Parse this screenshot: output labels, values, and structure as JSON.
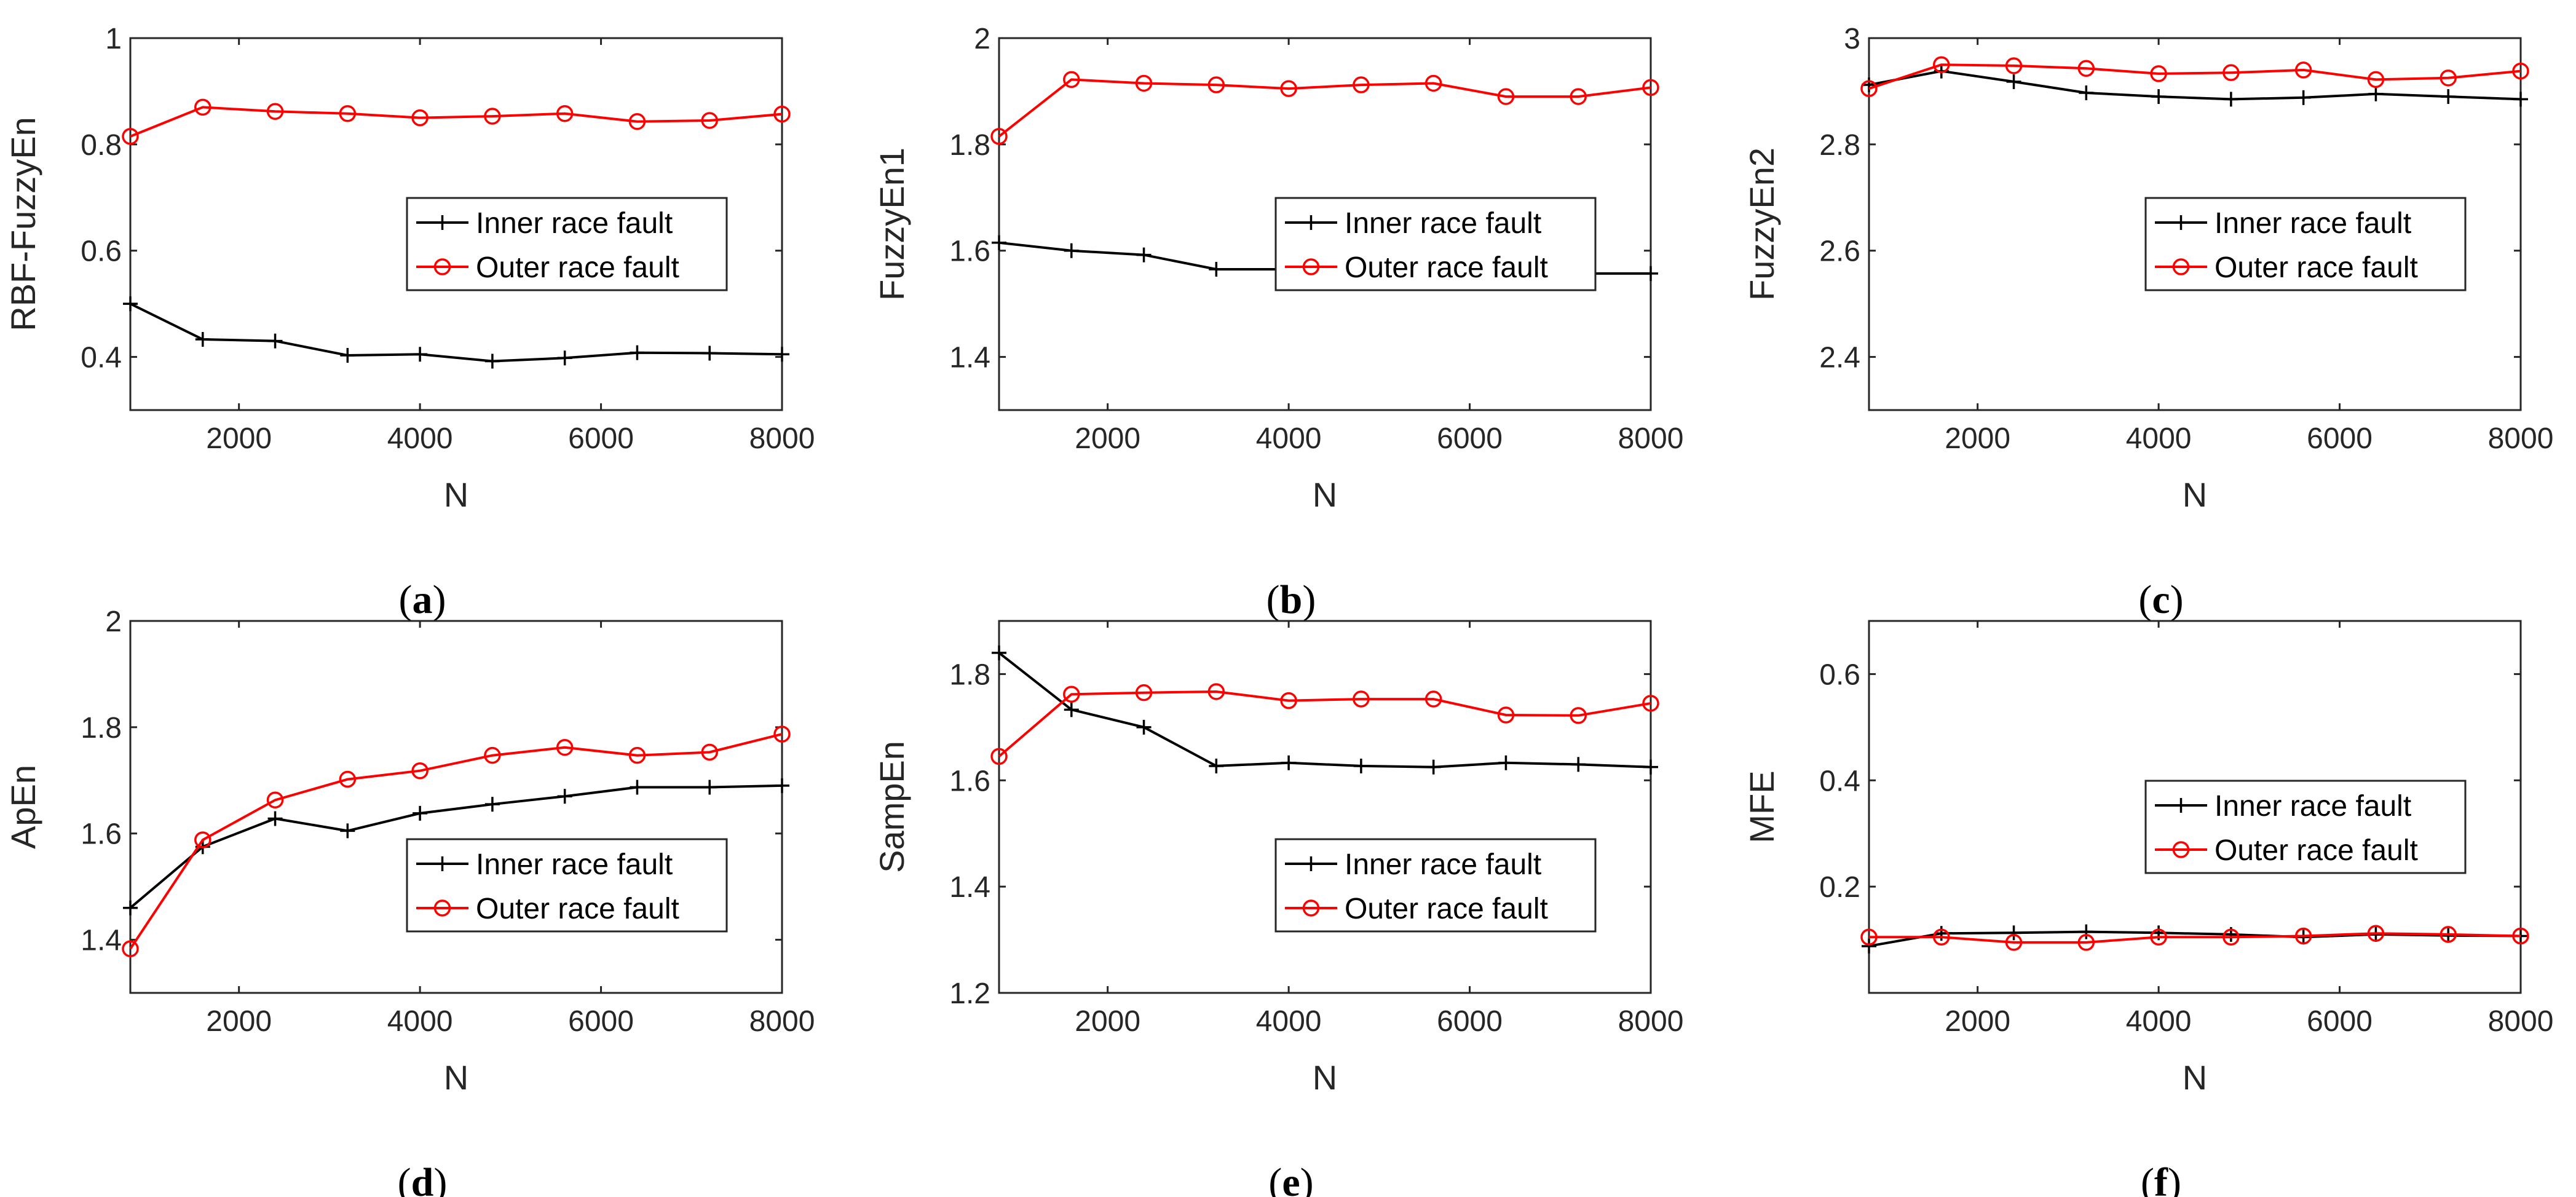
{
  "colors": {
    "inner": "#000000",
    "outer": "#ff0000",
    "axis": "#262626"
  },
  "chart_data": [
    {
      "id": "a",
      "type": "line",
      "caption_letter": "a",
      "xlabel": "N",
      "ylabel": "RBF-FuzzyEn",
      "xlim": [
        800,
        8000
      ],
      "ylim": [
        0.3,
        1.0
      ],
      "yticks": [
        "0.4",
        "0.6",
        "0.8",
        "1"
      ],
      "ytick_values": [
        0.4,
        0.6,
        0.8,
        1.0
      ],
      "xticks": [
        "2000",
        "4000",
        "6000",
        "8000"
      ],
      "xtick_values": [
        2000,
        4000,
        6000,
        8000
      ],
      "x": [
        800,
        1600,
        2400,
        3200,
        4000,
        4800,
        5600,
        6400,
        7200,
        8000
      ],
      "legend_position": "center-right",
      "series": [
        {
          "name": "Inner race fault",
          "marker": "plus",
          "values": [
            0.5,
            0.433,
            0.43,
            0.403,
            0.405,
            0.392,
            0.398,
            0.408,
            0.407,
            0.405
          ]
        },
        {
          "name": "Outer race fault",
          "marker": "circle",
          "values": [
            0.815,
            0.87,
            0.862,
            0.858,
            0.85,
            0.853,
            0.858,
            0.843,
            0.845,
            0.857
          ]
        }
      ]
    },
    {
      "id": "b",
      "type": "line",
      "caption_letter": "b",
      "xlabel": "N",
      "ylabel": "FuzzyEn1",
      "xlim": [
        800,
        8000
      ],
      "ylim": [
        1.3,
        2.0
      ],
      "yticks": [
        "1.4",
        "1.6",
        "1.8",
        "2"
      ],
      "ytick_values": [
        1.4,
        1.6,
        1.8,
        2.0
      ],
      "xticks": [
        "2000",
        "4000",
        "6000",
        "8000"
      ],
      "xtick_values": [
        2000,
        4000,
        6000,
        8000
      ],
      "x": [
        800,
        1600,
        2400,
        3200,
        4000,
        4800,
        5600,
        6400,
        7200,
        8000
      ],
      "legend_position": "center-right",
      "series": [
        {
          "name": "Inner race fault",
          "marker": "plus",
          "values": [
            1.615,
            1.6,
            1.592,
            1.565,
            1.565,
            1.558,
            1.56,
            1.562,
            1.557,
            1.557
          ]
        },
        {
          "name": "Outer race fault",
          "marker": "circle",
          "values": [
            1.815,
            1.922,
            1.915,
            1.912,
            1.905,
            1.912,
            1.915,
            1.89,
            1.89,
            1.907
          ]
        }
      ]
    },
    {
      "id": "c",
      "type": "line",
      "caption_letter": "c",
      "xlabel": "N",
      "ylabel": "FuzzyEn2",
      "xlim": [
        800,
        8000
      ],
      "ylim": [
        2.3,
        3.0
      ],
      "yticks": [
        "2.4",
        "2.6",
        "2.8",
        "3"
      ],
      "ytick_values": [
        2.4,
        2.6,
        2.8,
        3.0
      ],
      "xticks": [
        "2000",
        "4000",
        "6000",
        "8000"
      ],
      "xtick_values": [
        2000,
        4000,
        6000,
        8000
      ],
      "x": [
        800,
        1600,
        2400,
        3200,
        4000,
        4800,
        5600,
        6400,
        7200,
        8000
      ],
      "legend_position": "center-right",
      "series": [
        {
          "name": "Inner race fault",
          "marker": "plus",
          "values": [
            2.912,
            2.938,
            2.918,
            2.897,
            2.89,
            2.885,
            2.888,
            2.895,
            2.89,
            2.885
          ]
        },
        {
          "name": "Outer race fault",
          "marker": "circle",
          "values": [
            2.905,
            2.95,
            2.948,
            2.943,
            2.933,
            2.935,
            2.94,
            2.922,
            2.925,
            2.938
          ]
        }
      ]
    },
    {
      "id": "d",
      "type": "line",
      "caption_letter": "d",
      "xlabel": "N",
      "ylabel": "ApEn",
      "xlim": [
        800,
        8000
      ],
      "ylim": [
        1.3,
        2.0
      ],
      "yticks": [
        "1.4",
        "1.6",
        "1.8",
        "2"
      ],
      "ytick_values": [
        1.4,
        1.6,
        1.8,
        2.0
      ],
      "xticks": [
        "2000",
        "4000",
        "6000",
        "8000"
      ],
      "xtick_values": [
        2000,
        4000,
        6000,
        8000
      ],
      "x": [
        800,
        1600,
        2400,
        3200,
        4000,
        4800,
        5600,
        6400,
        7200,
        8000
      ],
      "legend_position": "bottom-right",
      "series": [
        {
          "name": "Inner race fault",
          "marker": "plus",
          "values": [
            1.46,
            1.575,
            1.628,
            1.605,
            1.638,
            1.655,
            1.67,
            1.687,
            1.687,
            1.69
          ]
        },
        {
          "name": "Outer race fault",
          "marker": "circle",
          "values": [
            1.383,
            1.588,
            1.663,
            1.702,
            1.718,
            1.747,
            1.762,
            1.747,
            1.753,
            1.787
          ]
        }
      ]
    },
    {
      "id": "e",
      "type": "line",
      "caption_letter": "e",
      "xlabel": "N",
      "ylabel": "SampEn",
      "xlim": [
        800,
        8000
      ],
      "ylim": [
        1.2,
        1.9
      ],
      "yticks": [
        "1.2",
        "1.4",
        "1.6",
        "1.8"
      ],
      "ytick_values": [
        1.2,
        1.4,
        1.6,
        1.8
      ],
      "xticks": [
        "2000",
        "4000",
        "6000",
        "8000"
      ],
      "xtick_values": [
        2000,
        4000,
        6000,
        8000
      ],
      "x": [
        800,
        1600,
        2400,
        3200,
        4000,
        4800,
        5600,
        6400,
        7200,
        8000
      ],
      "legend_position": "bottom-right",
      "series": [
        {
          "name": "Inner race fault",
          "marker": "plus",
          "values": [
            1.84,
            1.733,
            1.7,
            1.627,
            1.633,
            1.627,
            1.625,
            1.633,
            1.63,
            1.625
          ]
        },
        {
          "name": "Outer race fault",
          "marker": "circle",
          "values": [
            1.645,
            1.762,
            1.765,
            1.767,
            1.75,
            1.753,
            1.753,
            1.723,
            1.722,
            1.745
          ]
        }
      ]
    },
    {
      "id": "f",
      "type": "line",
      "caption_letter": "f",
      "xlabel": "N",
      "ylabel": "MFE",
      "xlim": [
        800,
        8000
      ],
      "ylim": [
        0.0,
        0.7
      ],
      "yticks": [
        "0.2",
        "0.4",
        "0.6"
      ],
      "ytick_values": [
        0.2,
        0.4,
        0.6
      ],
      "xticks": [
        "2000",
        "4000",
        "6000",
        "8000"
      ],
      "xtick_values": [
        2000,
        4000,
        6000,
        8000
      ],
      "x": [
        800,
        1600,
        2400,
        3200,
        4000,
        4800,
        5600,
        6400,
        7200,
        8000
      ],
      "legend_position": "center-right",
      "series": [
        {
          "name": "Inner race fault",
          "marker": "plus",
          "values": [
            0.088,
            0.112,
            0.113,
            0.115,
            0.113,
            0.11,
            0.105,
            0.11,
            0.108,
            0.107
          ]
        },
        {
          "name": "Outer race fault",
          "marker": "circle",
          "values": [
            0.105,
            0.105,
            0.095,
            0.095,
            0.105,
            0.105,
            0.107,
            0.112,
            0.11,
            0.107
          ]
        }
      ]
    }
  ]
}
